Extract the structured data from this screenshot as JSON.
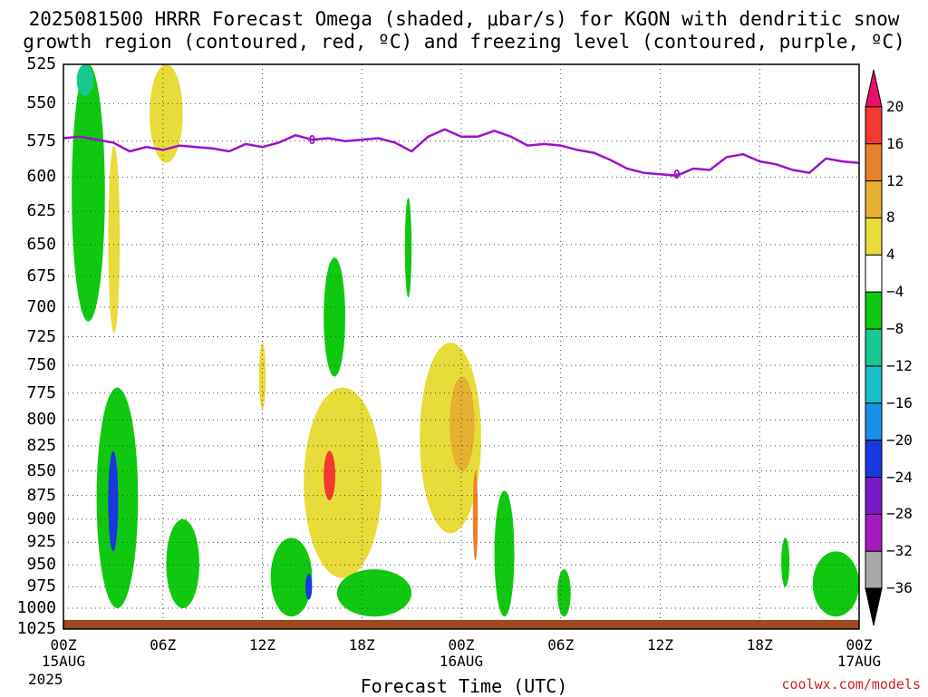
{
  "title_line1": "2025081500 HRRR Forecast Omega (shaded, μbar/s) for KGON with dendritic snow",
  "title_line2": "growth region (contoured, red, ºC) and freezing level (contoured, purple, ºC)",
  "xlabel": "Forecast Time (UTC)",
  "credit": "coolwx.com/models",
  "year_label": "2025",
  "freezing_contour_label": "0",
  "colors": {
    "freezing_level": "#9a12c8",
    "ground": "#9b4a22"
  },
  "colorbar": {
    "labels": [
      "20",
      "16",
      "12",
      "8",
      "4",
      "−4",
      "−8",
      "−12",
      "−16",
      "−20",
      "−24",
      "−28",
      "−32",
      "−36"
    ],
    "bins": [
      {
        "range": [
          "above",
          20
        ],
        "color": "#e8106a"
      },
      {
        "range": [
          16,
          20
        ],
        "color": "#f23a30"
      },
      {
        "range": [
          12,
          16
        ],
        "color": "#e8822a"
      },
      {
        "range": [
          8,
          12
        ],
        "color": "#e6b030"
      },
      {
        "range": [
          4,
          8
        ],
        "color": "#e8dc3a"
      },
      {
        "range": [
          -4,
          4
        ],
        "color": "#ffffff"
      },
      {
        "range": [
          -8,
          -4
        ],
        "color": "#10c810"
      },
      {
        "range": [
          -12,
          -8
        ],
        "color": "#18c890"
      },
      {
        "range": [
          -16,
          -12
        ],
        "color": "#18c0c8"
      },
      {
        "range": [
          -20,
          -16
        ],
        "color": "#1890e8"
      },
      {
        "range": [
          -24,
          -20
        ],
        "color": "#1838e0"
      },
      {
        "range": [
          -28,
          -24
        ],
        "color": "#7818c8"
      },
      {
        "range": [
          -32,
          -28
        ],
        "color": "#a818c0"
      },
      {
        "range": [
          -36,
          -32
        ],
        "color": "#a8a8a8"
      },
      {
        "range": [
          "below",
          -36
        ],
        "color": "#000000"
      }
    ]
  },
  "chart_data": {
    "type": "heatmap",
    "title": "2025081500 HRRR Forecast Omega (shaded, μbar/s) for KGON with dendritic snow growth region (contoured, red, ºC) and freezing level (contoured, purple, ºC)",
    "xlabel": "Forecast Time (UTC)",
    "ylabel": "",
    "x_ticks": [
      {
        "hour": 0,
        "label": "00Z",
        "sub": "15AUG"
      },
      {
        "hour": 6,
        "label": "06Z",
        "sub": ""
      },
      {
        "hour": 12,
        "label": "12Z",
        "sub": ""
      },
      {
        "hour": 18,
        "label": "18Z",
        "sub": ""
      },
      {
        "hour": 24,
        "label": "00Z",
        "sub": "16AUG"
      },
      {
        "hour": 30,
        "label": "06Z",
        "sub": ""
      },
      {
        "hour": 36,
        "label": "12Z",
        "sub": ""
      },
      {
        "hour": 42,
        "label": "18Z",
        "sub": ""
      },
      {
        "hour": 48,
        "label": "00Z",
        "sub": "17AUG"
      }
    ],
    "xlim": [
      0,
      48
    ],
    "y_ticks": [
      525,
      550,
      575,
      600,
      625,
      650,
      675,
      700,
      725,
      750,
      775,
      800,
      825,
      850,
      875,
      900,
      925,
      950,
      975,
      1000,
      1025
    ],
    "ylim": [
      525,
      1025
    ],
    "y_scale": "log-pressure",
    "grid": true,
    "freezing_level": {
      "hours": [
        0,
        1,
        2,
        3,
        4,
        5,
        6,
        7,
        8,
        9,
        10,
        11,
        12,
        13,
        14,
        15,
        16,
        17,
        18,
        19,
        20,
        21,
        22,
        23,
        24,
        25,
        26,
        27,
        28,
        29,
        30,
        31,
        32,
        33,
        34,
        35,
        36,
        37,
        38,
        39,
        40,
        41,
        42,
        43,
        44,
        45,
        46,
        47,
        48
      ],
      "pressure_hPa": [
        573,
        572,
        574,
        576,
        582,
        579,
        581,
        578,
        579,
        580,
        582,
        577,
        579,
        576,
        571,
        574,
        573,
        575,
        574,
        573,
        576,
        582,
        572,
        567,
        572,
        572,
        568,
        572,
        578,
        577,
        578,
        581,
        583,
        588,
        594,
        597,
        598,
        599,
        594,
        595,
        586,
        584,
        589,
        591,
        595,
        597,
        587,
        589,
        590
      ]
    },
    "omega_regions": [
      {
        "value_bin": [
          -8,
          -4
        ],
        "hours": [
          0.5,
          2.5
        ],
        "p_hPa": [
          525,
          712
        ]
      },
      {
        "value_bin": [
          -12,
          -8
        ],
        "hours": [
          0.8,
          1.8
        ],
        "p_hPa": [
          525,
          545
        ]
      },
      {
        "value_bin": [
          4,
          8
        ],
        "hours": [
          5.2,
          7.2
        ],
        "p_hPa": [
          525,
          590
        ]
      },
      {
        "value_bin": [
          4,
          8
        ],
        "hours": [
          2.7,
          3.4
        ],
        "p_hPa": [
          578,
          722
        ]
      },
      {
        "value_bin": [
          -8,
          -4
        ],
        "hours": [
          20.6,
          21.0
        ],
        "p_hPa": [
          615,
          692
        ]
      },
      {
        "value_bin": [
          -8,
          -4
        ],
        "hours": [
          15.7,
          17.0
        ],
        "p_hPa": [
          660,
          760
        ]
      },
      {
        "value_bin": [
          4,
          8
        ],
        "hours": [
          11.8,
          12.2
        ],
        "p_hPa": [
          730,
          790
        ]
      },
      {
        "value_bin": [
          -8,
          -4
        ],
        "hours": [
          2.0,
          4.5
        ],
        "p_hPa": [
          770,
          1000
        ]
      },
      {
        "value_bin": [
          -24,
          -20
        ],
        "hours": [
          2.7,
          3.3
        ],
        "p_hPa": [
          830,
          935
        ]
      },
      {
        "value_bin": [
          4,
          8
        ],
        "hours": [
          14.5,
          19.2
        ],
        "p_hPa": [
          770,
          965
        ]
      },
      {
        "value_bin": [
          16,
          20
        ],
        "hours": [
          15.7,
          16.4
        ],
        "p_hPa": [
          830,
          880
        ]
      },
      {
        "value_bin": [
          4,
          8
        ],
        "hours": [
          21.5,
          25.2
        ],
        "p_hPa": [
          730,
          915
        ]
      },
      {
        "value_bin": [
          8,
          12
        ],
        "hours": [
          23.3,
          24.8
        ],
        "p_hPa": [
          760,
          850
        ]
      },
      {
        "value_bin": [
          12,
          16
        ],
        "hours": [
          24.7,
          25.0
        ],
        "p_hPa": [
          850,
          945
        ]
      },
      {
        "value_bin": [
          -8,
          -4
        ],
        "hours": [
          12.5,
          15.0
        ],
        "p_hPa": [
          920,
          1010
        ]
      },
      {
        "value_bin": [
          -24,
          -20
        ],
        "hours": [
          14.6,
          15.0
        ],
        "p_hPa": [
          960,
          990
        ]
      },
      {
        "value_bin": [
          -8,
          -4
        ],
        "hours": [
          16.5,
          21.0
        ],
        "p_hPa": [
          955,
          1010
        ]
      },
      {
        "value_bin": [
          -8,
          -4
        ],
        "hours": [
          6.2,
          8.2
        ],
        "p_hPa": [
          900,
          1000
        ]
      },
      {
        "value_bin": [
          -8,
          -4
        ],
        "hours": [
          26.0,
          27.2
        ],
        "p_hPa": [
          870,
          1010
        ]
      },
      {
        "value_bin": [
          -8,
          -4
        ],
        "hours": [
          45.2,
          48.0
        ],
        "p_hPa": [
          935,
          1010
        ]
      },
      {
        "value_bin": [
          -8,
          -4
        ],
        "hours": [
          43.3,
          43.8
        ],
        "p_hPa": [
          920,
          975
        ]
      },
      {
        "value_bin": [
          -8,
          -4
        ],
        "hours": [
          29.8,
          30.6
        ],
        "p_hPa": [
          955,
          1010
        ]
      }
    ]
  }
}
